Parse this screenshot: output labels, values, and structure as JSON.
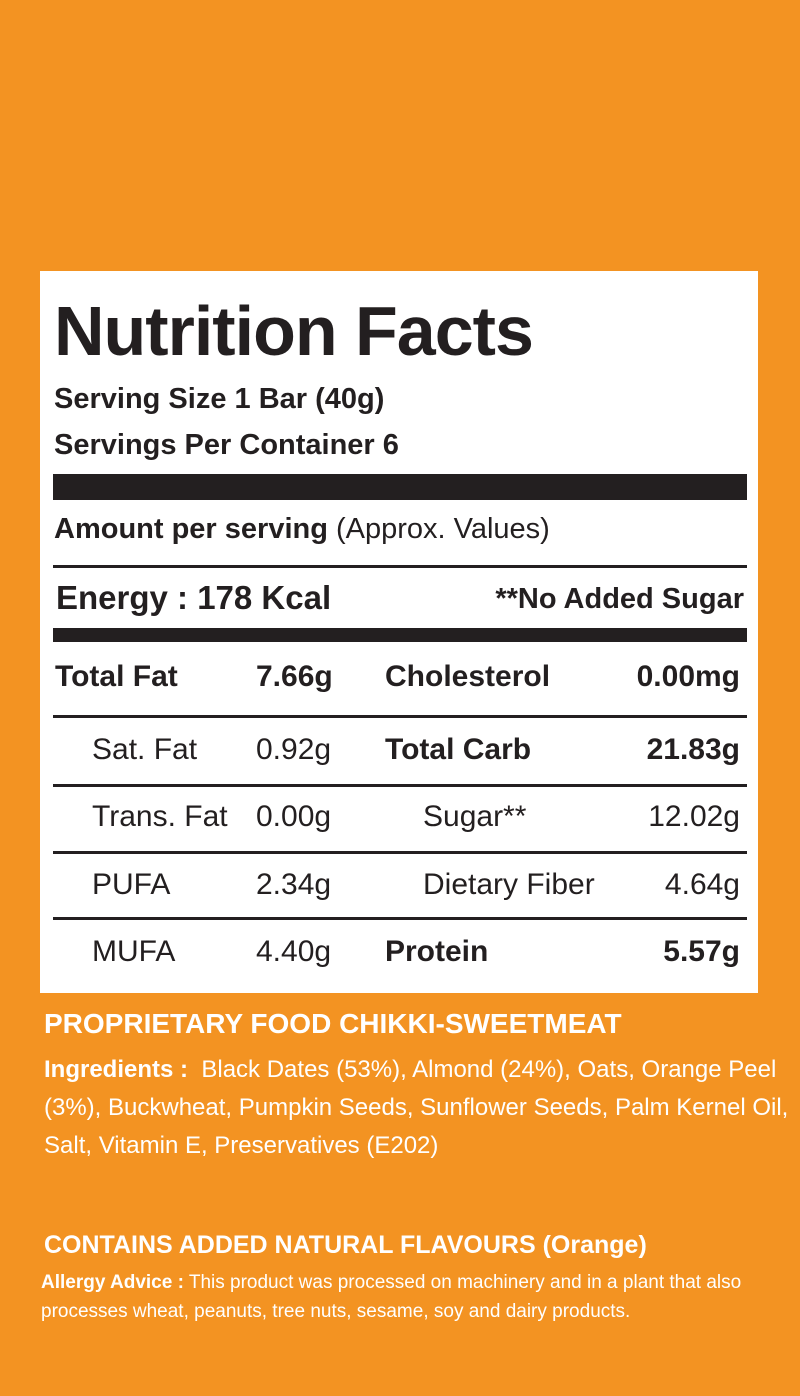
{
  "label": {
    "title": "Nutrition Facts",
    "serving_size": "Serving Size 1 Bar (40g)",
    "servings_per_container": "Servings Per Container 6",
    "amount_per_serving": "Amount per serving",
    "approx_note": "(Approx. Values)",
    "energy": "Energy : 178 Kcal",
    "sugar_note": "**No Added Sugar"
  },
  "table": {
    "rows": [
      [
        "Total Fat",
        "7.66g",
        "Cholesterol",
        "0.00mg"
      ],
      [
        "Sat. Fat",
        "0.92g",
        "Total Carb",
        "21.83g"
      ],
      [
        "Trans. Fat",
        "0.00g",
        "Sugar**",
        "12.02g"
      ],
      [
        "PUFA",
        "2.34g",
        "Dietary Fiber",
        "4.64g"
      ],
      [
        "MUFA",
        "4.40g",
        "Protein",
        "5.57g"
      ]
    ]
  },
  "footer": {
    "product_type": "PROPRIETARY FOOD CHIKKI-SWEETMEAT",
    "ingredients_label": "Ingredients :",
    "ingredients": "Black Dates (53%), Almond (24%), Oats, Orange Peel (3%), Buckwheat, Pumpkin Seeds, Sunflower Seeds, Palm Kernel Oil, Salt, Vitamin E, Preservatives (E202)",
    "flavours": "CONTAINS ADDED NATURAL FLAVOURS (Orange)",
    "allergy_label": "Allergy Advice :",
    "allergy": "This product was processed on machinery and in a plant that also processes wheat, peanuts, tree nuts, sesame, soy and dairy products."
  }
}
